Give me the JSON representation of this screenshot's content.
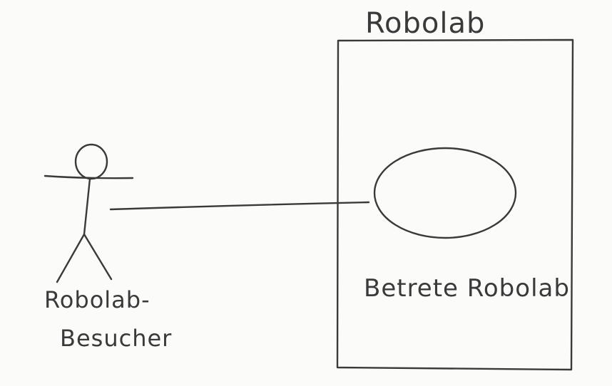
{
  "diagram": {
    "type": "use-case",
    "style": "hand-drawn pencil sketch",
    "system": {
      "title": "Robolab"
    },
    "actor": {
      "label_line1": "Robolab-",
      "label_line2": "Besucher"
    },
    "use_case": {
      "label": "Betrete Robolab"
    },
    "colors": {
      "stroke": "#3a3a3a",
      "paper": "#fbfbfa"
    }
  }
}
